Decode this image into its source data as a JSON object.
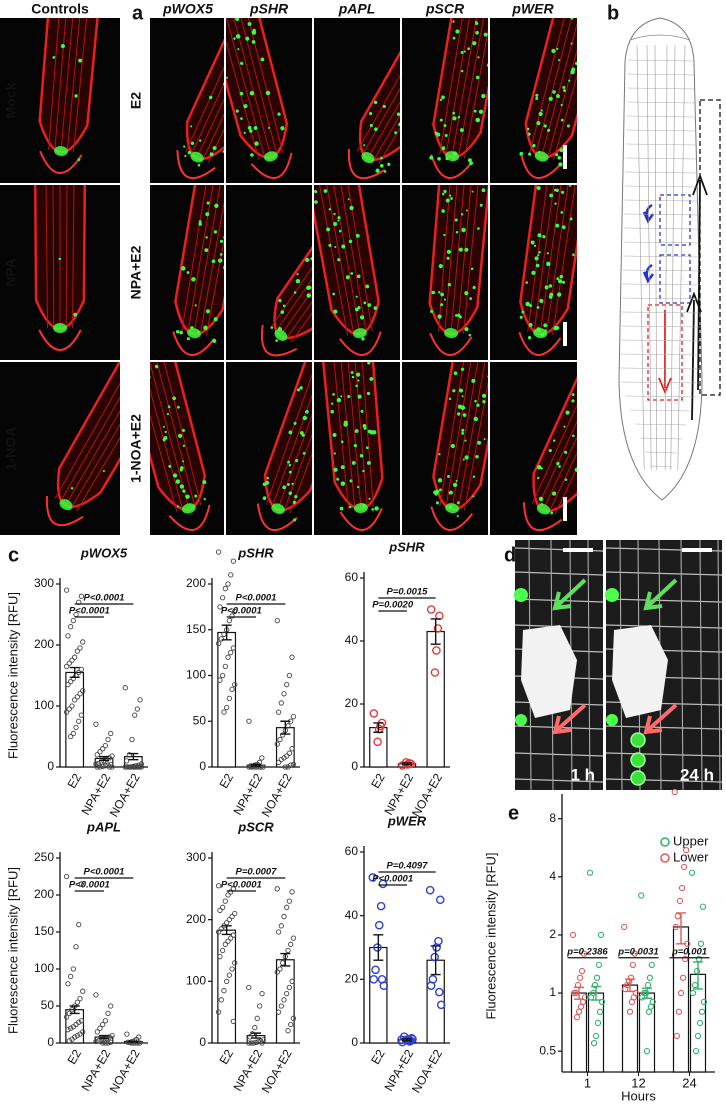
{
  "panel_labels": [
    "a",
    "b",
    "c",
    "d",
    "e"
  ],
  "panel_a": {
    "columns": [
      "Controls",
      "pWOX5",
      "pSHR",
      "pAPL",
      "pSCR",
      "pWER"
    ],
    "controls": [
      "Mock",
      "NPA",
      "1-NOA"
    ],
    "treatments": [
      "E2",
      "NPA+E2",
      "1-NOA+E2"
    ]
  },
  "panel_d": {
    "times": [
      "1 h",
      "24 h"
    ]
  },
  "chart_data": [
    {
      "type": "bar",
      "title": "pWOX5",
      "ylabel": "Fluorescence intensity [RFU]",
      "categories": [
        "E2",
        "NPA+E2",
        "NOA+E2"
      ],
      "values": [
        155,
        14,
        17
      ],
      "errors": [
        8,
        3,
        5
      ],
      "points": [
        [
          290,
          280,
          270,
          250,
          240,
          230,
          215,
          205,
          195,
          190,
          180,
          175,
          170,
          165,
          160,
          155,
          150,
          145,
          140,
          135,
          125,
          120,
          115,
          110,
          100,
          95,
          90,
          85,
          75,
          65,
          55,
          50
        ],
        [
          70,
          55,
          45,
          35,
          30,
          25,
          20,
          18,
          15,
          12,
          10,
          8,
          6,
          5,
          4,
          3,
          2,
          1,
          0,
          0,
          0,
          0
        ],
        [
          130,
          110,
          95,
          85,
          45,
          20,
          10,
          5,
          3,
          2,
          1,
          0,
          0,
          0,
          0,
          0,
          0,
          0,
          0,
          0,
          0,
          0,
          0,
          0
        ]
      ],
      "color": "#444444",
      "ylim": [
        0,
        300
      ],
      "yticks": [
        0,
        100,
        200,
        300
      ],
      "annotations": [
        "P<0.0001",
        "P<0.0001"
      ]
    },
    {
      "type": "bar",
      "title": "pSHR",
      "categories": [
        "E2",
        "NPA+E2",
        "NOA+E2"
      ],
      "values": [
        147,
        2,
        43
      ],
      "errors": [
        8,
        1,
        7
      ],
      "points": [
        [
          235,
          225,
          210,
          200,
          195,
          185,
          175,
          170,
          165,
          160,
          150,
          145,
          140,
          135,
          130,
          125,
          120,
          110,
          100,
          95,
          90,
          85,
          75,
          65,
          60
        ],
        [
          50,
          10,
          5,
          3,
          2,
          1,
          1,
          0,
          0,
          0,
          0,
          0,
          0,
          0
        ],
        [
          160,
          120,
          100,
          90,
          80,
          70,
          60,
          55,
          50,
          45,
          40,
          35,
          30,
          25,
          20,
          15,
          12,
          10,
          8,
          5,
          3,
          2,
          0,
          0
        ]
      ],
      "color": "#444444",
      "ylim": [
        0,
        200
      ],
      "yticks": [
        0,
        50,
        100,
        150,
        200
      ],
      "annotations": [
        "P<0.0001",
        "P<0.0001"
      ]
    },
    {
      "type": "bar",
      "title": "pSHR",
      "categories": [
        "E2",
        "NPA+E2",
        "NOA+E2"
      ],
      "values": [
        12.5,
        1,
        43
      ],
      "errors": [
        1.5,
        0.3,
        4
      ],
      "points": [
        [
          17,
          14,
          13,
          12,
          8
        ],
        [
          0.5,
          1,
          1.2,
          0.8,
          1.5
        ],
        [
          50,
          48,
          44,
          37,
          30
        ]
      ],
      "color": "#e03c3c",
      "ylim": [
        0,
        60
      ],
      "yticks": [
        0,
        20,
        40,
        60
      ],
      "annotations": [
        "P=0.0015",
        "P=0.0020"
      ]
    },
    {
      "type": "bar",
      "title": "pAPL",
      "ylabel": "Fluorescence intensity [RFU]",
      "categories": [
        "E2",
        "NPA+E2",
        "NOA+E2"
      ],
      "values": [
        45,
        8,
        2
      ],
      "errors": [
        5,
        2,
        0.5
      ],
      "points": [
        [
          225,
          215,
          160,
          130,
          100,
          90,
          80,
          70,
          60,
          55,
          50,
          45,
          40,
          35,
          30,
          28,
          25,
          22,
          20,
          18,
          15,
          12,
          10,
          8,
          5,
          3
        ],
        [
          65,
          50,
          40,
          30,
          25,
          20,
          15,
          10,
          8,
          6,
          5,
          4,
          3,
          2,
          1,
          0,
          0,
          0
        ],
        [
          12,
          8,
          5,
          3,
          2,
          1,
          1,
          0,
          0,
          0,
          0,
          0
        ]
      ],
      "color": "#444444",
      "ylim": [
        0,
        250
      ],
      "yticks": [
        0,
        50,
        100,
        150,
        200,
        250
      ],
      "annotations": [
        "P<0.0001",
        "P<0.0001"
      ]
    },
    {
      "type": "bar",
      "title": "pSCR",
      "categories": [
        "E2",
        "NPA+E2",
        "NOA+E2"
      ],
      "values": [
        183,
        12,
        135
      ],
      "errors": [
        7,
        4,
        10
      ],
      "points": [
        [
          255,
          250,
          245,
          240,
          230,
          220,
          215,
          210,
          205,
          200,
          195,
          190,
          185,
          180,
          175,
          170,
          165,
          160,
          150,
          140,
          130,
          120,
          110,
          100,
          85,
          70,
          50,
          35
        ],
        [
          90,
          80,
          60,
          40,
          25,
          15,
          10,
          5,
          3,
          2,
          1,
          0,
          0,
          0,
          0
        ],
        [
          250,
          245,
          230,
          220,
          205,
          190,
          180,
          170,
          160,
          150,
          140,
          130,
          120,
          115,
          100,
          90,
          80,
          70,
          60,
          50,
          40,
          30,
          20
        ]
      ],
      "color": "#444444",
      "ylim": [
        0,
        300
      ],
      "yticks": [
        0,
        100,
        200,
        300
      ],
      "annotations": [
        "P=0.0007",
        "P<0.0001"
      ]
    },
    {
      "type": "bar",
      "title": "pWER",
      "categories": [
        "E2",
        "NPA+E2",
        "NOA+E2"
      ],
      "values": [
        30,
        1,
        26
      ],
      "errors": [
        4,
        0.3,
        4.5
      ],
      "points": [
        [
          52,
          50,
          43,
          37,
          30,
          23,
          20,
          18,
          20
        ],
        [
          1,
          1.5,
          0.5,
          0.8,
          1,
          2,
          0.3,
          1.2,
          0.7
        ],
        [
          48,
          45,
          32,
          30,
          27,
          20,
          18,
          12,
          16
        ]
      ],
      "color": "#2f3fd6",
      "ylim": [
        0,
        60
      ],
      "yticks": [
        0,
        20,
        40,
        60
      ],
      "annotations": [
        "P=0.4097",
        "P<0.0001"
      ]
    },
    {
      "type": "grouped_bar",
      "ylabel": "Fluorescence intensity [RFU]",
      "xlabel": "Hours",
      "categories": [
        "1",
        "12",
        "24"
      ],
      "log_scale": true,
      "legend": "top-right",
      "series": [
        {
          "name": "Upper",
          "color": "#2db36b",
          "values": [
            1.0,
            1.0,
            1.25
          ],
          "errors": [
            0.08,
            0.06,
            0.2
          ],
          "points": [
            [
              4.2,
              2.0,
              1.4,
              1.2,
              1.1,
              1.0,
              0.95,
              0.9,
              0.8,
              0.7,
              0.6,
              0.55
            ],
            [
              3.2,
              1.4,
              1.2,
              1.1,
              1.0,
              1.0,
              0.95,
              0.9,
              0.85,
              0.8,
              0.5
            ],
            [
              4.2,
              2.8,
              1.8,
              1.5,
              1.3,
              1.1,
              1.0,
              0.9,
              0.8,
              0.7,
              0.6,
              0.5
            ]
          ]
        },
        {
          "name": "Lower",
          "color": "#e05a5a",
          "values": [
            1.0,
            1.1,
            2.2
          ],
          "errors": [
            0.07,
            0.08,
            0.4
          ],
          "points": [
            [
              2.0,
              1.6,
              1.3,
              1.2,
              1.1,
              1.0,
              1.0,
              0.95,
              0.9,
              0.85,
              0.8,
              0.75
            ],
            [
              2.2,
              1.6,
              1.4,
              1.2,
              1.15,
              1.1,
              1.05,
              1.0,
              0.95,
              0.9,
              0.8
            ],
            [
              11,
              5.5,
              4.5,
              3.5,
              3,
              2.5,
              2.2,
              1.8,
              1.5,
              1.2,
              1,
              0.8,
              0.6
            ]
          ]
        }
      ],
      "ylim": [
        0.39,
        10
      ],
      "yticks": [
        0.5,
        1,
        2,
        4,
        8
      ],
      "annotations": [
        "p=0.2386",
        "p=0.0031",
        "p=0.001"
      ]
    }
  ]
}
